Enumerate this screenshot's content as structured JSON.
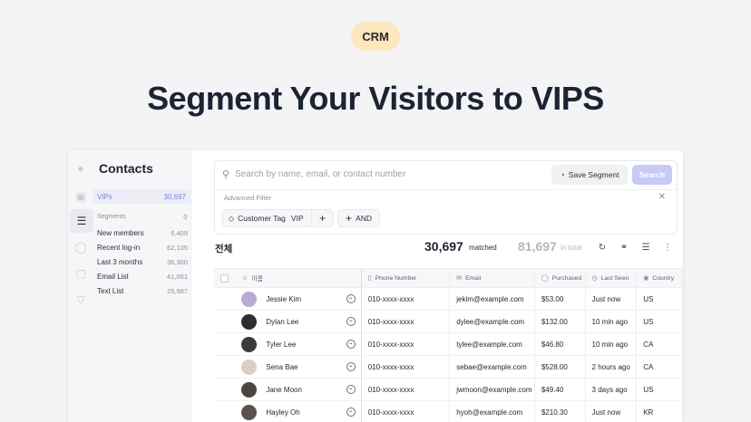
{
  "hero": {
    "badge": "CRM",
    "headline": "Segment Your Visitors to VIPS"
  },
  "sidebar": {
    "title": "Contacts",
    "vip": {
      "label": "VIPs",
      "count": "30,697"
    },
    "segments_label": "Segments",
    "segments": [
      {
        "label": "New members",
        "count": "6,409"
      },
      {
        "label": "Recent log-in",
        "count": "62,105"
      },
      {
        "label": "Last 3 months",
        "count": "36,300"
      },
      {
        "label": "Email List",
        "count": "41,001"
      },
      {
        "label": "Text List",
        "count": "25,987"
      }
    ]
  },
  "search": {
    "placeholder": "Search by name, email, or contact number",
    "save_segment": "Save Segment",
    "search_button": "Search",
    "advanced_filter": "Advanced Filter",
    "chip_field": "Customer Tag",
    "chip_value": "VIP",
    "and_label": "AND"
  },
  "summary": {
    "list_label": "전체",
    "matched_count": "30,697",
    "matched_label": "matched",
    "total_count": "81,697",
    "total_label": "in total"
  },
  "table": {
    "headers": {
      "name": "이름",
      "phone": "Phone Number",
      "email": "Email",
      "purchased": "Purchased",
      "last_seen": "Last Seen",
      "country": "Country"
    },
    "rows": [
      {
        "name": "Jessie Kim",
        "phone": "010-xxxx-xxxx",
        "email": "jekim@example.com",
        "purchased": "$53.00",
        "last_seen": "Just now",
        "country": "US",
        "avatar_color": "#b9a9d6"
      },
      {
        "name": "Dylan Lee",
        "phone": "010-xxxx-xxxx",
        "email": "dylee@example.com",
        "purchased": "$132.00",
        "last_seen": "10 min ago",
        "country": "US",
        "avatar_color": "#2d2d2d"
      },
      {
        "name": "Tyler Lee",
        "phone": "010-xxxx-xxxx",
        "email": "tylee@example.com",
        "purchased": "$46.80",
        "last_seen": "10 min ago",
        "country": "CA",
        "avatar_color": "#3b3b3b"
      },
      {
        "name": "Sena Bae",
        "phone": "010-xxxx-xxxx",
        "email": "sebae@example.com",
        "purchased": "$528.00",
        "last_seen": "2 hours ago",
        "country": "CA",
        "avatar_color": "#d8cfc8"
      },
      {
        "name": "Jane Moon",
        "phone": "010-xxxx-xxxx",
        "email": "jwmoon@example.com",
        "purchased": "$49.40",
        "last_seen": "3 days ago",
        "country": "US",
        "avatar_color": "#4a4644"
      },
      {
        "name": "Hayley Oh",
        "phone": "010-xxxx-xxxx",
        "email": "hyoh@example.com",
        "purchased": "$210.30",
        "last_seen": "Just now",
        "country": "KR",
        "avatar_color": "#5b5250"
      }
    ]
  }
}
